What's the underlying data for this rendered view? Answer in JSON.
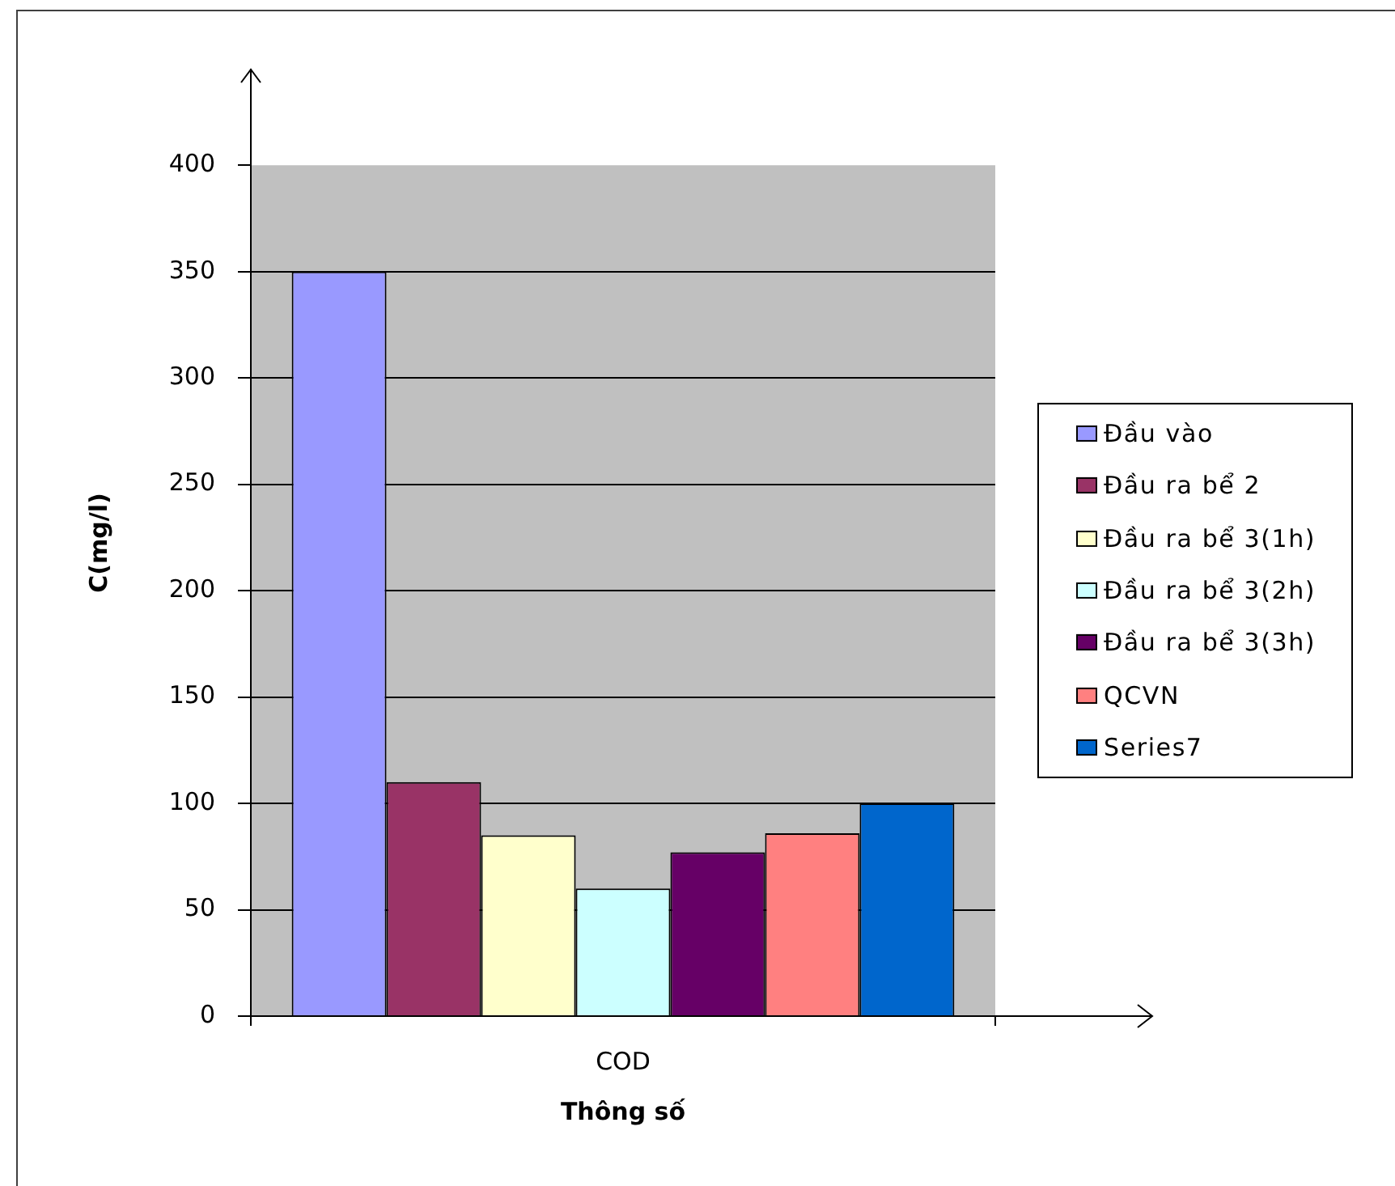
{
  "chart_data": {
    "type": "bar",
    "categories": [
      "COD"
    ],
    "series": [
      {
        "name": "Đầu vào",
        "color": "#9999ff",
        "values": [
          350
        ]
      },
      {
        "name": "Đầu ra bể 2",
        "color": "#993366",
        "values": [
          110
        ]
      },
      {
        "name": "Đầu ra bể 3(1h)",
        "color": "#ffffcc",
        "values": [
          85
        ]
      },
      {
        "name": "Đầu ra bể 3(2h)",
        "color": "#ccffff",
        "values": [
          60
        ]
      },
      {
        "name": "Đầu ra bể 3(3h)",
        "color": "#660066",
        "values": [
          77
        ]
      },
      {
        "name": "QCVN",
        "color": "#ff8080",
        "values": [
          86
        ]
      },
      {
        "name": "Series7",
        "color": "#0066cc",
        "values": [
          100
        ]
      }
    ],
    "xlabel": "Thông số",
    "ylabel": "C(mg/l)",
    "ylim": [
      0,
      445
    ],
    "yticks": [
      0,
      50,
      100,
      150,
      200,
      250,
      300,
      350,
      400
    ],
    "bands": [
      {
        "axis": "y",
        "from": 0,
        "to": 400,
        "color": "#c0c0c0"
      }
    ],
    "grid": "y",
    "legend": "right"
  }
}
